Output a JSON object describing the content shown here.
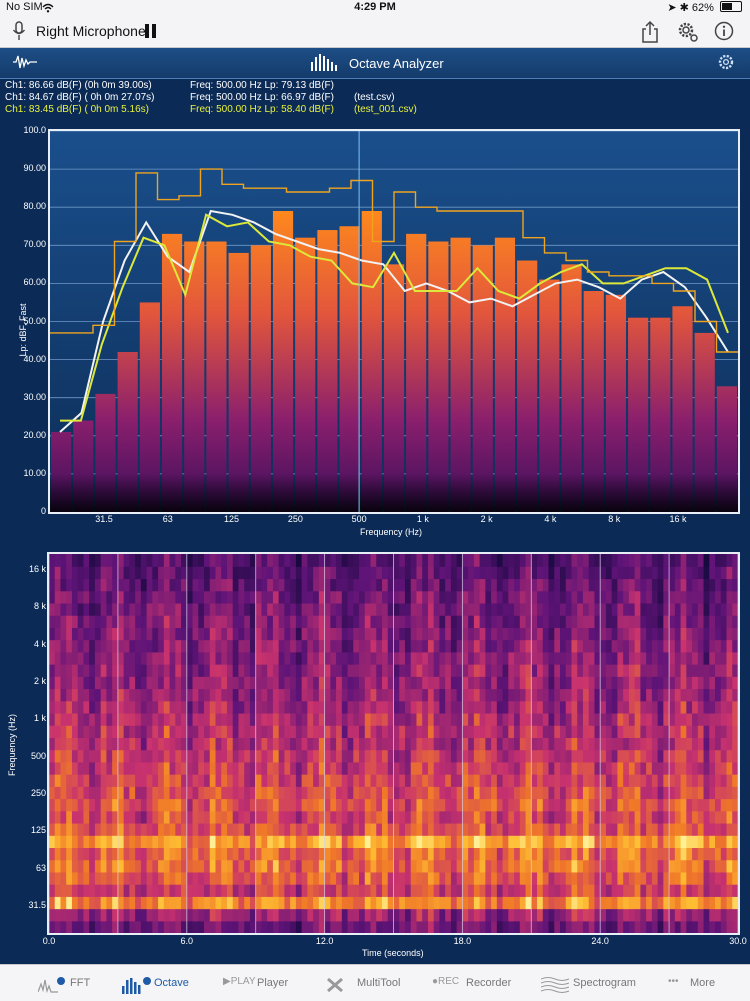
{
  "status_bar": {
    "carrier": "No SIM",
    "time": "4:29 PM",
    "battery": "62%",
    "battery_level": 0.62
  },
  "nav": {
    "title": "Right Microphone"
  },
  "analyzer": {
    "title": "Octave Analyzer"
  },
  "readout": {
    "rows": [
      {
        "ch": "Ch1: 86.66  dB(F) (0h  0m 39.00s)",
        "freq": "Freq: 500.00 Hz  Lp: 79.13 dB(F)",
        "file": "",
        "color": "#ffffff"
      },
      {
        "ch": "Ch1: 84.67  dB(F) ( 0h  0m 27.07s)",
        "freq": "Freq: 500.00 Hz  Lp: 66.97 dB(F)",
        "file": "(test.csv)",
        "color": "#ffffff"
      },
      {
        "ch": "Ch1: 83.45  dB(F) ( 0h  0m 5.16s)",
        "freq": "Freq: 500.00 Hz  Lp: 58.40 dB(F)",
        "file": "(test_001.csv)",
        "color": "#e9f23a"
      }
    ]
  },
  "colors": {
    "bar_top": "#ff8a1c",
    "bar_bottom": "#3b0e5a",
    "white_line": "#f2f2f2",
    "yellow_line": "#dce83a",
    "orange_line": "#f0a41e",
    "cursor": "#7fc3f0"
  },
  "chart_data": [
    {
      "type": "bar",
      "xlabel": "Frequency (Hz)",
      "ylabel": "Lp: dBF, Fast",
      "ylim": [
        0,
        100
      ],
      "y_ticks": [
        "0",
        "10.00",
        "20.00",
        "30.00",
        "40.00",
        "50.00",
        "60.00",
        "70.00",
        "80.00",
        "90.00",
        "100.0"
      ],
      "x_ticks": [
        "31.5",
        "63",
        "125",
        "250",
        "500",
        "1 k",
        "2 k",
        "4 k",
        "8 k",
        "16 k"
      ],
      "cursor_band": "500",
      "bars": [
        21,
        24,
        31,
        42,
        55,
        73,
        71,
        71,
        68,
        70,
        79,
        72,
        74,
        75,
        79,
        65,
        73,
        71,
        72,
        70,
        72,
        66,
        61,
        65,
        58,
        57,
        51,
        51,
        54,
        47,
        33
      ],
      "series": [
        {
          "name": "",
          "color": "white",
          "values": [
            21,
            26,
            50,
            66,
            76,
            67,
            63,
            79,
            78,
            76,
            73,
            71,
            69,
            68,
            66,
            65,
            58,
            60,
            58,
            55,
            56,
            54,
            57,
            60,
            61,
            59,
            56,
            61,
            63,
            59,
            51,
            42
          ]
        },
        {
          "name": "",
          "color": "yellow",
          "values": [
            24,
            24,
            44,
            59,
            72,
            70,
            57,
            78,
            75,
            76,
            71,
            70,
            67,
            66,
            60,
            59,
            68,
            58,
            58,
            58,
            64,
            58,
            56,
            60,
            63,
            65,
            60,
            60,
            62,
            64,
            64,
            61,
            47
          ]
        },
        {
          "name": "",
          "color": "orange",
          "values": [
            47,
            47,
            49,
            71,
            89,
            82,
            83,
            90,
            86,
            85,
            85,
            84,
            84,
            85,
            87,
            71,
            84,
            80,
            79,
            79,
            79,
            79,
            72,
            68,
            66,
            63,
            62,
            62,
            60,
            58,
            50,
            42
          ]
        }
      ]
    },
    {
      "type": "heatmap",
      "xlabel": "Time (seconds)",
      "ylabel": "Frequency (Hz)",
      "xlim": [
        0,
        30
      ],
      "x_ticks": [
        "0.0",
        "6.0",
        "12.0",
        "18.0",
        "24.0",
        "30.0"
      ],
      "y_ticks": [
        "31.5",
        "63",
        "125",
        "250",
        "500",
        "1 k",
        "2 k",
        "4 k",
        "8 k",
        "16 k"
      ],
      "band_profile": [
        0.32,
        0.45,
        0.78,
        0.58,
        0.66,
        0.72,
        0.7,
        0.84,
        0.64,
        0.6,
        0.66,
        0.62,
        0.6,
        0.57,
        0.55,
        0.5,
        0.52,
        0.5,
        0.46,
        0.44,
        0.42,
        0.42,
        0.4,
        0.38,
        0.36,
        0.35,
        0.34,
        0.33,
        0.3,
        0.28,
        0.24
      ]
    }
  ],
  "tabs": [
    {
      "id": "fft",
      "label": "FFT",
      "icon": "fft-icon",
      "active": false
    },
    {
      "id": "octave",
      "label": "Octave",
      "icon": "octave-icon",
      "active": true
    },
    {
      "id": "player",
      "label": "Player",
      "icon": "play-icon",
      "prefix": "▶PLAY",
      "active": false
    },
    {
      "id": "multitool",
      "label": "MultiTool",
      "icon": "multitool-icon",
      "active": false
    },
    {
      "id": "recorder",
      "label": "Recorder",
      "icon": "rec-icon",
      "prefix": "●REC",
      "active": false
    },
    {
      "id": "spectrogram",
      "label": "Spectrogram",
      "icon": "spectrogram-icon",
      "active": false
    },
    {
      "id": "more",
      "label": "More",
      "icon": "more-icon",
      "prefix": "•••",
      "active": false
    }
  ]
}
